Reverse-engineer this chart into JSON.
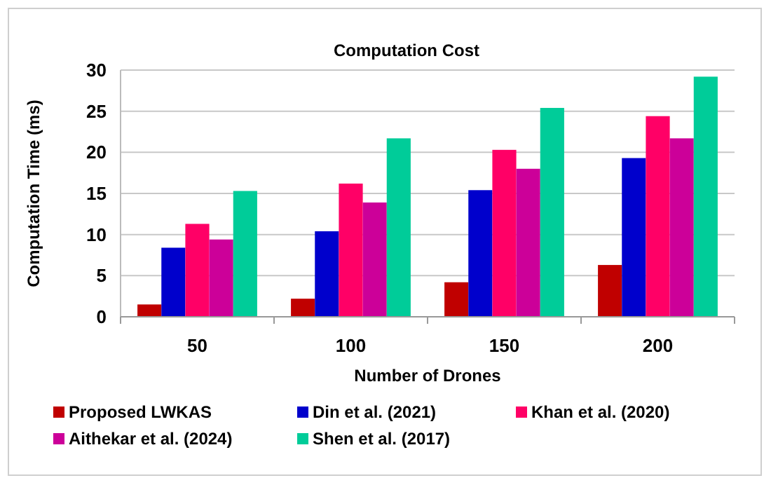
{
  "chart_data": {
    "type": "bar",
    "title": "Computation Cost",
    "xlabel": "Number of Drones",
    "ylabel": "Computation Time (ms)",
    "categories": [
      "50",
      "100",
      "150",
      "200"
    ],
    "series": [
      {
        "name": "Proposed LWKAS",
        "color": "#c00000",
        "values": [
          1.5,
          2.2,
          4.2,
          6.3
        ]
      },
      {
        "name": "Din et al. (2021)",
        "color": "#0000cc",
        "values": [
          8.4,
          10.4,
          15.4,
          19.3
        ]
      },
      {
        "name": "Khan et al. (2020)",
        "color": "#ff0066",
        "values": [
          11.3,
          16.2,
          20.3,
          24.4
        ]
      },
      {
        "name": "Aithekar et al. (2024)",
        "color": "#cc0099",
        "values": [
          9.4,
          13.9,
          18.0,
          21.7
        ]
      },
      {
        "name": "Shen et al. (2017)",
        "color": "#00cc99",
        "values": [
          15.3,
          21.7,
          25.4,
          29.2
        ]
      }
    ],
    "ylim": [
      0,
      30
    ],
    "yticks": [
      0,
      5,
      10,
      15,
      20,
      25,
      30
    ],
    "grid": "y",
    "legend": "bottom"
  }
}
